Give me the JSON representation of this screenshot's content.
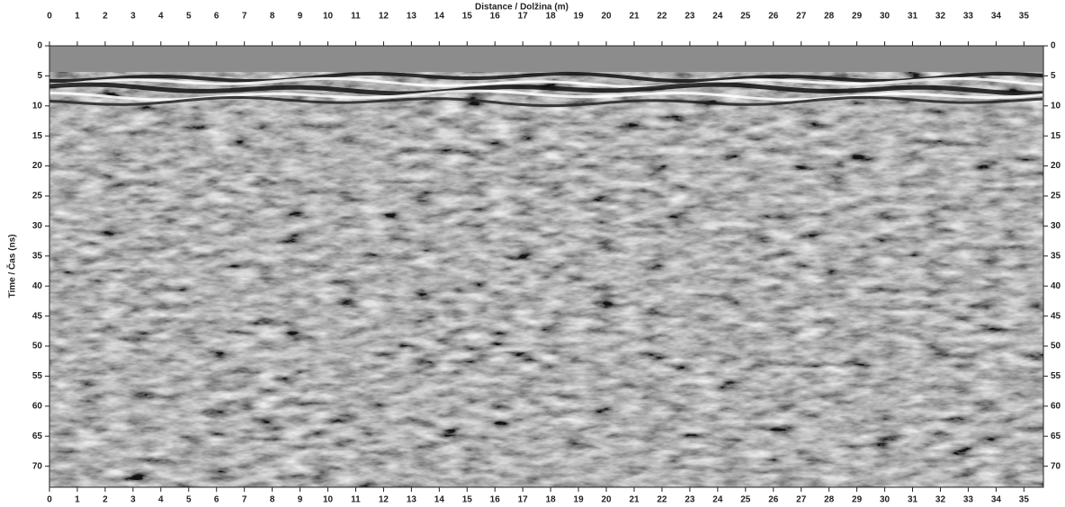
{
  "chart_data": {
    "type": "radargram",
    "title": "Distance / Dolžina (m)",
    "y_label": "Time / Čas (ns)",
    "xlim": [
      0,
      35.7
    ],
    "ylim": [
      0,
      73.5
    ],
    "y_inverted": true,
    "xticks": [
      0,
      1,
      2,
      3,
      4,
      5,
      6,
      7,
      8,
      9,
      10,
      11,
      12,
      13,
      14,
      15,
      16,
      17,
      18,
      19,
      20,
      21,
      22,
      23,
      24,
      25,
      26,
      27,
      28,
      29,
      30,
      31,
      32,
      33,
      34,
      35
    ],
    "yticks": [
      0,
      5,
      10,
      15,
      20,
      25,
      30,
      35,
      40,
      45,
      50,
      55,
      60,
      65,
      70
    ]
  }
}
